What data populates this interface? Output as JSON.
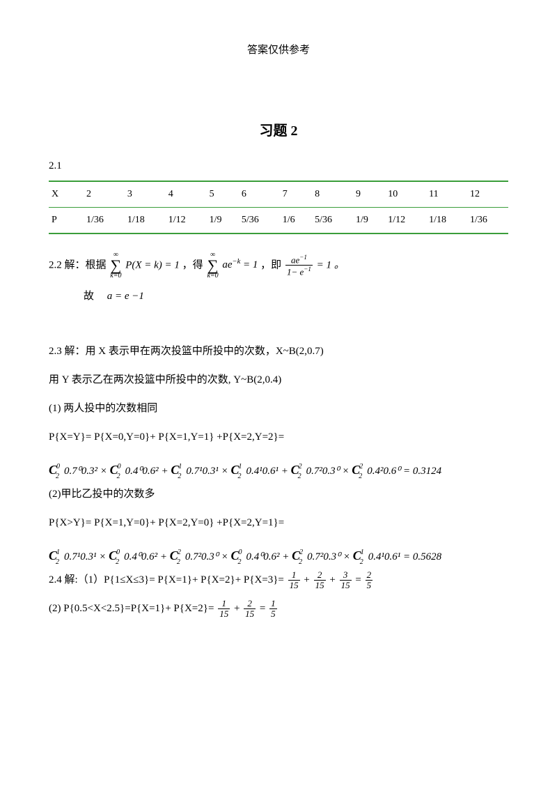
{
  "header": "答案仅供参考",
  "title": "习题 2",
  "sec21": {
    "label": "2.1"
  },
  "table": {
    "col0": "X",
    "h": [
      "2",
      "3",
      "4",
      "5",
      "6",
      "7",
      "8",
      "9",
      "10",
      "11",
      "12"
    ],
    "rlabel": "P",
    "r": [
      "1/36",
      "1/18",
      "1/12",
      "1/9",
      "5/36",
      "1/6",
      "5/36",
      "1/9",
      "1/12",
      "1/18",
      "1/36"
    ]
  },
  "sec22": {
    "prefix": "2.2 解：根据",
    "eq1_body": "P(X = k) = 1",
    "mid1": "，得",
    "eq2_body_a": "ae",
    "eq2_body_b": " = 1",
    "mid2": "，即",
    "frac_num_a": "ae",
    "frac_den": "1− e",
    "eq3_tail": " = 1 。",
    "line2_prefix": "故",
    "line2_eq": "a = e −1"
  },
  "sec23": {
    "l1": "2.3 解：用 X 表示甲在两次投篮中所投中的次数，X~B(2,0.7)",
    "l2": "用 Y 表示乙在两次投篮中所投中的次数, Y~B(2,0.4)",
    "l3": "(1)  两人投中的次数相同",
    "l4": "P{X=Y}= P{X=0,Y=0}+ P{X=1,Y=1} +P{X=2,Y=2}=",
    "f1_val": " = 0.3124",
    "l5": "(2)甲比乙投中的次数多",
    "l6": "P{X>Y}= P{X=1,Y=0}+ P{X=2,Y=0} +P{X=2,Y=1}=",
    "f2_val": " = 0.5628"
  },
  "sec24": {
    "l1_pre": "2.4 解:（1）P{1≤X≤3}= P{X=1}+ P{X=2}+ P{X=3}=",
    "l1_r": {
      "n1": "1",
      "d": "15",
      "n2": "2",
      "n3": "3",
      "rn": "2",
      "rd": "5"
    },
    "l2_pre": "(2)  P{0.5<X<2.5}=P{X=1}+ P{X=2}=",
    "l2_r": {
      "n1": "1",
      "d": "15",
      "n2": "2",
      "rn": "1",
      "rd": "5"
    }
  },
  "combs": {
    "f1": [
      {
        "sup": "0",
        "sub": "2",
        "tail": "0.7⁰0.3²"
      },
      {
        "sup": "0",
        "sub": "2",
        "tail": "0.4⁰0.6²"
      },
      {
        "sup": "1",
        "sub": "2",
        "tail": "0.7¹0.3¹"
      },
      {
        "sup": "1",
        "sub": "2",
        "tail": "0.4¹0.6¹"
      },
      {
        "sup": "2",
        "sub": "2",
        "tail": "0.7²0.3⁰"
      },
      {
        "sup": "2",
        "sub": "2",
        "tail": "0.4²0.6⁰"
      }
    ],
    "f2": [
      {
        "sup": "1",
        "sub": "2",
        "tail": "0.7¹0.3¹"
      },
      {
        "sup": "0",
        "sub": "2",
        "tail": "0.4⁰0.6²"
      },
      {
        "sup": "2",
        "sub": "2",
        "tail": "0.7²0.3⁰"
      },
      {
        "sup": "0",
        "sub": "2",
        "tail": "0.4⁰0.6²"
      },
      {
        "sup": "2",
        "sub": "2",
        "tail": "0.7²0.3⁰"
      },
      {
        "sup": "1",
        "sub": "2",
        "tail": "0.4¹0.6¹"
      }
    ]
  }
}
